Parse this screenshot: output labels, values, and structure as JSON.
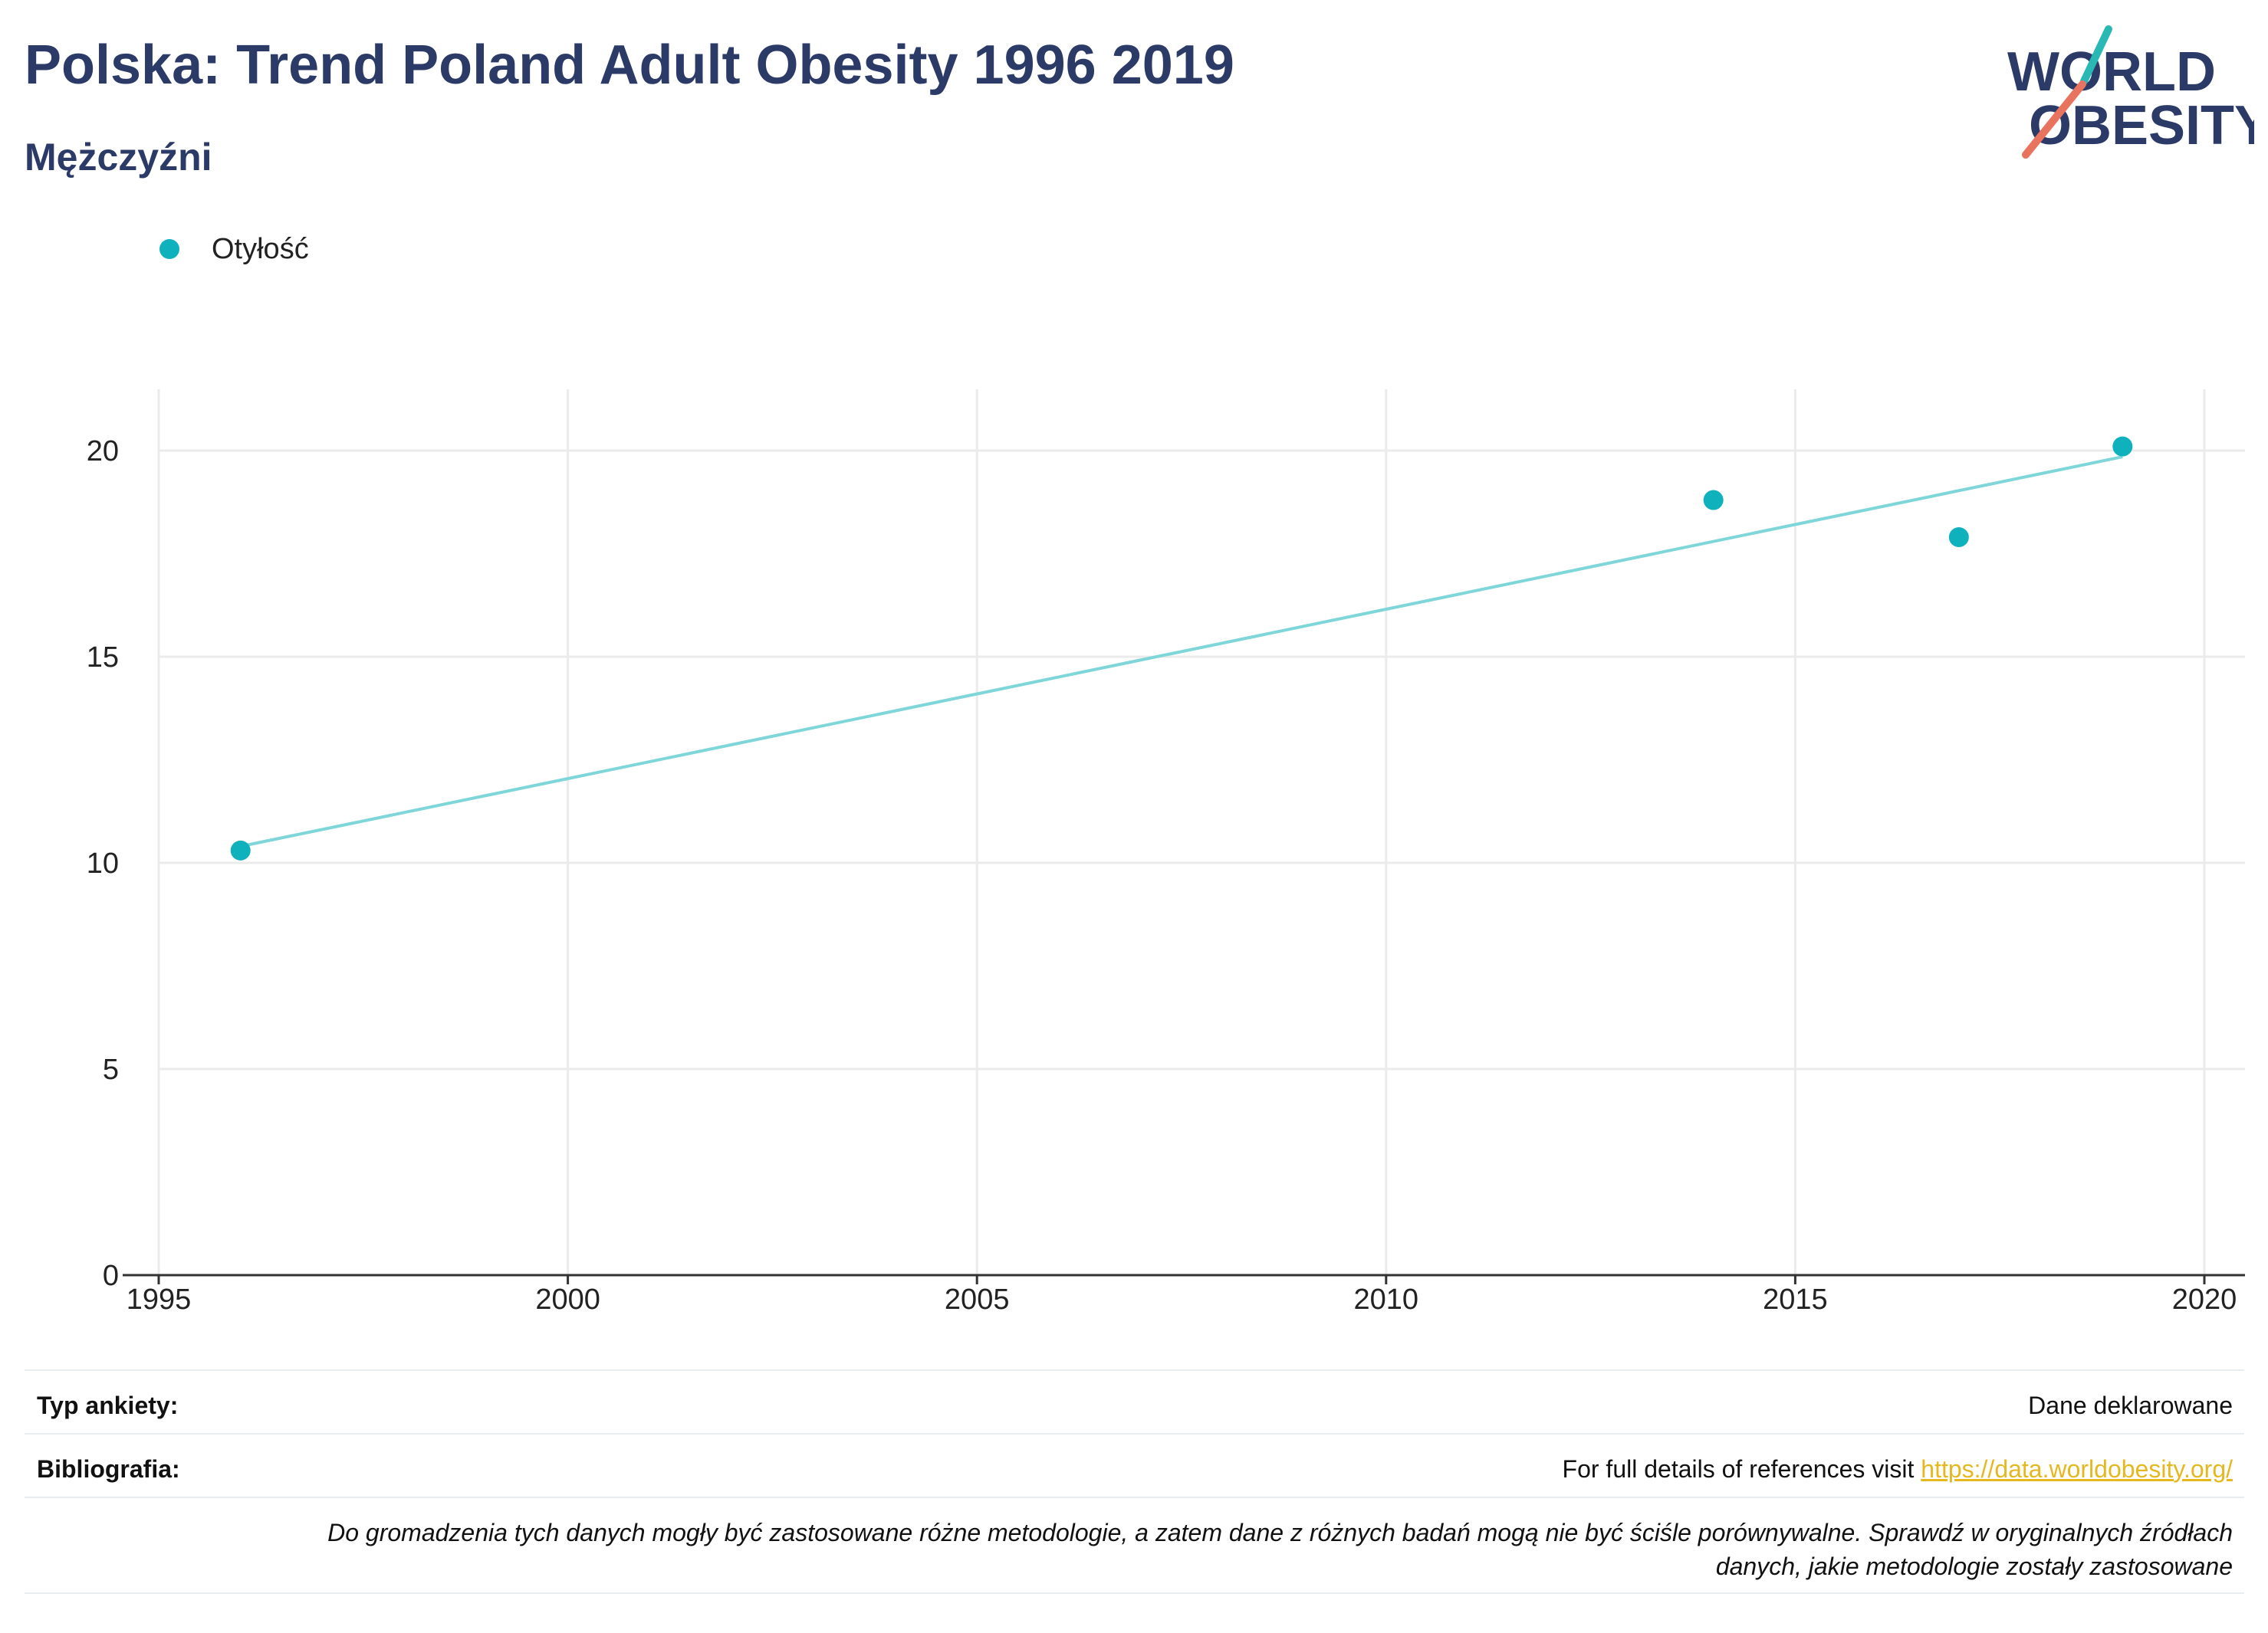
{
  "header": {
    "title": "Polska: Trend Poland Adult Obesity 1996 2019",
    "subtitle": "Mężczyźni"
  },
  "logo": {
    "line1": "WORLD",
    "line2": "OBESITY",
    "colors": {
      "text": "#2b3a67",
      "accent_teal": "#2ab8b5",
      "accent_red": "#e8735e"
    }
  },
  "legend": {
    "label": "Otyłość"
  },
  "chart_data": {
    "type": "scatter",
    "title": "Polska: Trend Poland Adult Obesity 1996 2019",
    "subtitle": "Mężczyźni",
    "xlabel": "",
    "ylabel": "",
    "xlim": [
      1995,
      2020.5
    ],
    "ylim": [
      0,
      21.5
    ],
    "x_ticks": [
      1995,
      2000,
      2005,
      2010,
      2015,
      2020
    ],
    "y_ticks": [
      0,
      5,
      10,
      15,
      20
    ],
    "grid": true,
    "legend_position": "top-left",
    "series": [
      {
        "name": "Otyłość",
        "color": "#0fb1bd",
        "points": [
          {
            "x": 1996,
            "y": 10.3
          },
          {
            "x": 2014,
            "y": 18.8
          },
          {
            "x": 2017,
            "y": 17.9
          },
          {
            "x": 2019,
            "y": 20.1
          }
        ]
      }
    ],
    "trendline": {
      "color": "#7fd6d9",
      "start": {
        "x": 1996,
        "y": 10.4
      },
      "end": {
        "x": 2019,
        "y": 19.85
      }
    }
  },
  "footer": {
    "survey_type_label": "Typ ankiety:",
    "survey_type_value": "Dane deklarowane",
    "bibliography_label": "Bibliografia:",
    "bibliography_text": "For full details of references visit ",
    "bibliography_link": "https://data.worldobesity.org/",
    "note_line1": "Do gromadzenia tych danych mogły być zastosowane różne metodologie, a zatem dane z różnych badań mogą nie być ściśle porównywalne. Sprawdź w oryginalnych źródłach",
    "note_line2": "danych, jakie metodologie zostały zastosowane"
  }
}
